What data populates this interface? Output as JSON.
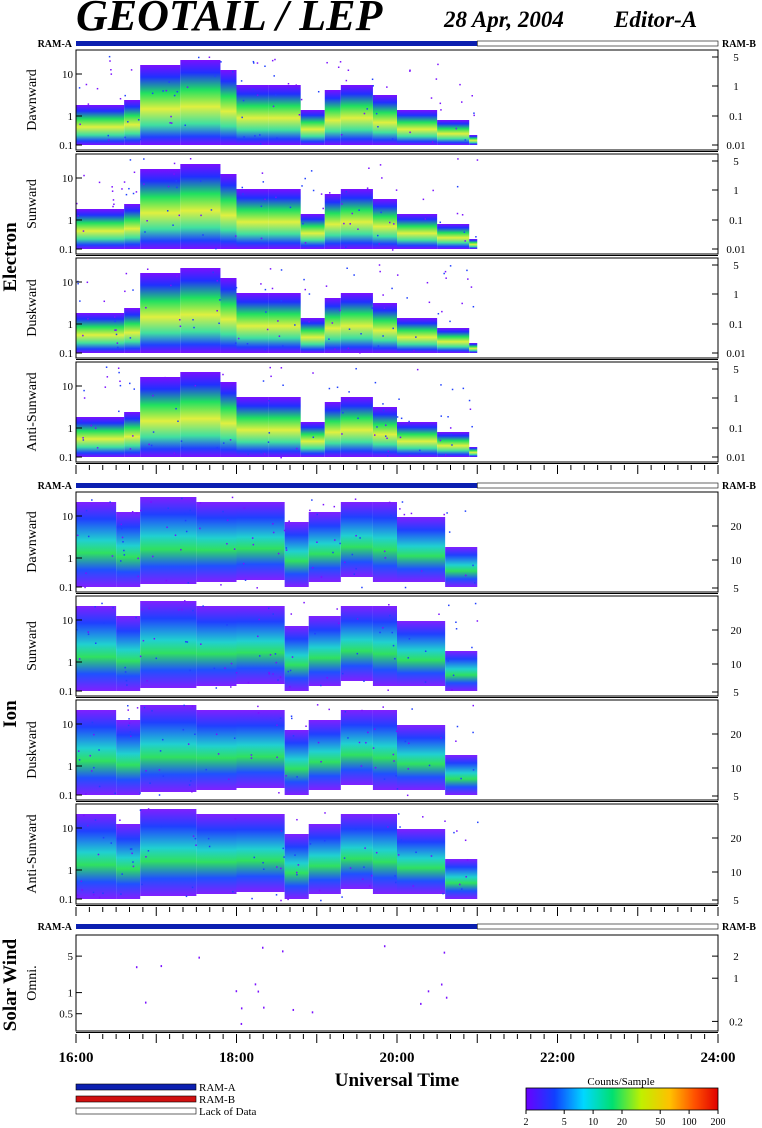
{
  "header": {
    "title": "GEOTAIL / LEP",
    "date": "28 Apr, 2004",
    "editor": "Editor-A"
  },
  "chart_data": {
    "type": "heatmap",
    "xlabel": "Universal Time",
    "x_ticks": [
      "16:00",
      "18:00",
      "20:00",
      "22:00",
      "24:00"
    ],
    "xlim": [
      "16:00",
      "24:00"
    ],
    "data_coverage": {
      "start": "16:00",
      "end": "21:00"
    },
    "ram_flag": {
      "left": "RAM-A",
      "right": "RAM-B"
    },
    "groups": [
      {
        "label": "Electron",
        "panels": [
          {
            "label": "Dawnward",
            "left_ticks": [
              "10",
              "1",
              "0.1"
            ],
            "right_ticks": [
              "5",
              "1",
              "0.1",
              "0.01"
            ]
          },
          {
            "label": "Sunward",
            "left_ticks": [
              "10",
              "1",
              "0.1"
            ],
            "right_ticks": [
              "5",
              "1",
              "0.1",
              "0.01"
            ]
          },
          {
            "label": "Duskward",
            "left_ticks": [
              "10",
              "1",
              "0.1"
            ],
            "right_ticks": [
              "5",
              "1",
              "0.1",
              "0.01"
            ]
          },
          {
            "label": "Anti-Sunward",
            "left_ticks": [
              "10",
              "1",
              "0.1"
            ],
            "right_ticks": [
              "5",
              "1",
              "0.1",
              "0.01"
            ]
          }
        ]
      },
      {
        "label": "Ion",
        "panels": [
          {
            "label": "Dawnward",
            "left_ticks": [
              "10",
              "1",
              "0.1"
            ],
            "right_ticks": [
              "20",
              "10",
              "5"
            ]
          },
          {
            "label": "Sunward",
            "left_ticks": [
              "10",
              "1",
              "0.1"
            ],
            "right_ticks": [
              "20",
              "10",
              "5"
            ]
          },
          {
            "label": "Duskward",
            "left_ticks": [
              "10",
              "1",
              "0.1"
            ],
            "right_ticks": [
              "20",
              "10",
              "5"
            ]
          },
          {
            "label": "Anti-Sunward",
            "left_ticks": [
              "10",
              "1",
              "0.1"
            ],
            "right_ticks": [
              "20",
              "10",
              "5"
            ]
          }
        ]
      },
      {
        "label": "Solar Wind",
        "panels": [
          {
            "label": "Omni.",
            "left_ticks": [
              "5",
              "1",
              "0.5"
            ],
            "right_ticks": [
              "2",
              "1",
              "0.2"
            ]
          }
        ]
      }
    ],
    "legend": [
      {
        "label": "RAM-A",
        "color": "#0b1fb0"
      },
      {
        "label": "RAM-B",
        "color": "#d01010"
      },
      {
        "label": "Lack of Data",
        "color": "#ffffff"
      }
    ],
    "colorbar": {
      "title": "Counts/Sample",
      "ticks": [
        "2",
        "5",
        "10",
        "20",
        "50",
        "100",
        "200"
      ],
      "colors": [
        "#6a00ff",
        "#1040ff",
        "#00d8ff",
        "#00e070",
        "#c0f000",
        "#ffc000",
        "#ff5000",
        "#e00000"
      ]
    }
  }
}
